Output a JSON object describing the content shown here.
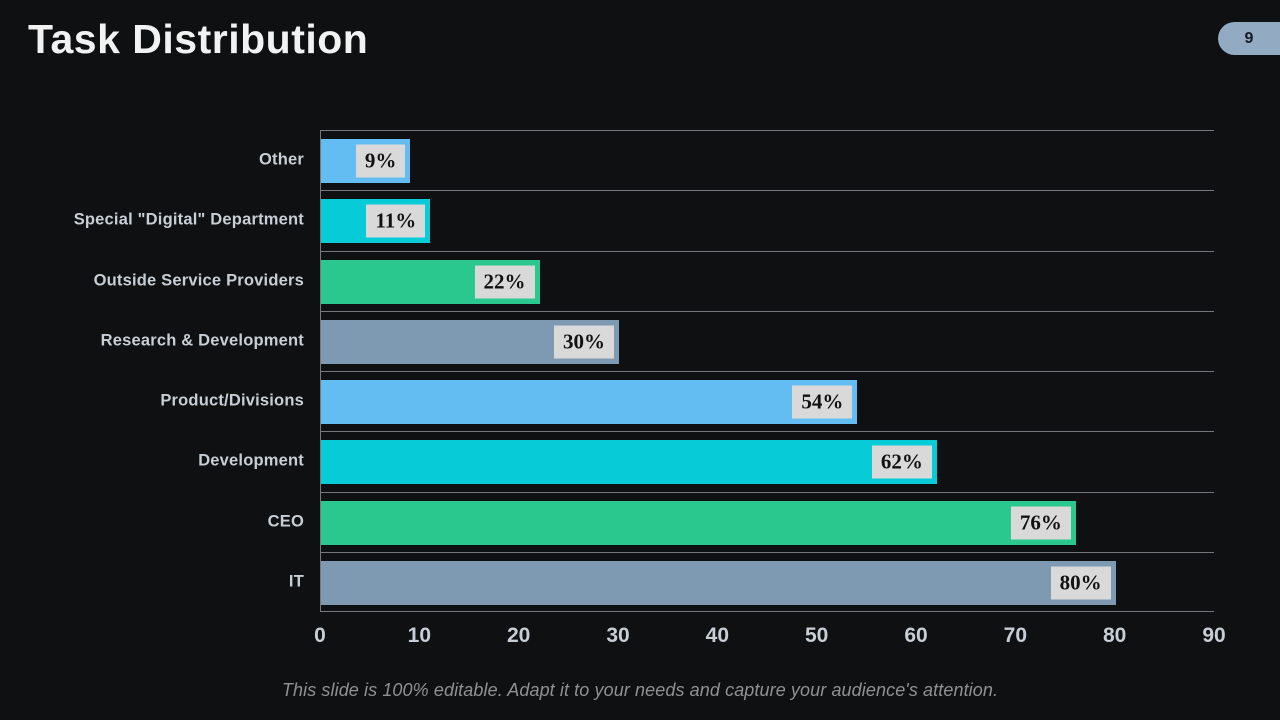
{
  "slide": {
    "title": "Task Distribution",
    "page_number": "9",
    "footer": "This slide is 100% editable. Adapt it to your needs and capture your audience's attention."
  },
  "colors": {
    "background": "#0e1011",
    "title_text": "#f2f2f2",
    "badge_bg": "#92aac2",
    "badge_text": "#131b26",
    "gridline": "#75797d",
    "category_text": "#c7ced6",
    "axis_text": "#c7ced6",
    "value_label_bg": "#d9d9d9",
    "value_label_text": "#111111",
    "footer_text": "#8f9193",
    "bar_palette": [
      "#63bdf3",
      "#08cbd8",
      "#2ac78f",
      "#7e9ab2"
    ]
  },
  "chart_data": {
    "type": "bar",
    "orientation": "horizontal",
    "title": "Task Distribution",
    "xlabel": "",
    "ylabel": "",
    "categories": [
      "Other",
      "Special \"Digital\" Department",
      "Outside Service Providers",
      "Research & Development",
      "Product/Divisions",
      "Development",
      "CEO",
      "IT"
    ],
    "values": [
      9,
      11,
      22,
      30,
      54,
      62,
      76,
      80
    ],
    "value_labels": [
      "9%",
      "11%",
      "22%",
      "30%",
      "54%",
      "62%",
      "76%",
      "80%"
    ],
    "xlim": [
      0,
      90
    ],
    "x_ticks": [
      0,
      10,
      20,
      30,
      40,
      50,
      60,
      70,
      80,
      90
    ],
    "grid": "horizontal row separators on, vertical off",
    "legend_position": "none",
    "bar_color_cycle": [
      "#63bdf3",
      "#08cbd8",
      "#2ac78f",
      "#7e9ab2"
    ]
  }
}
